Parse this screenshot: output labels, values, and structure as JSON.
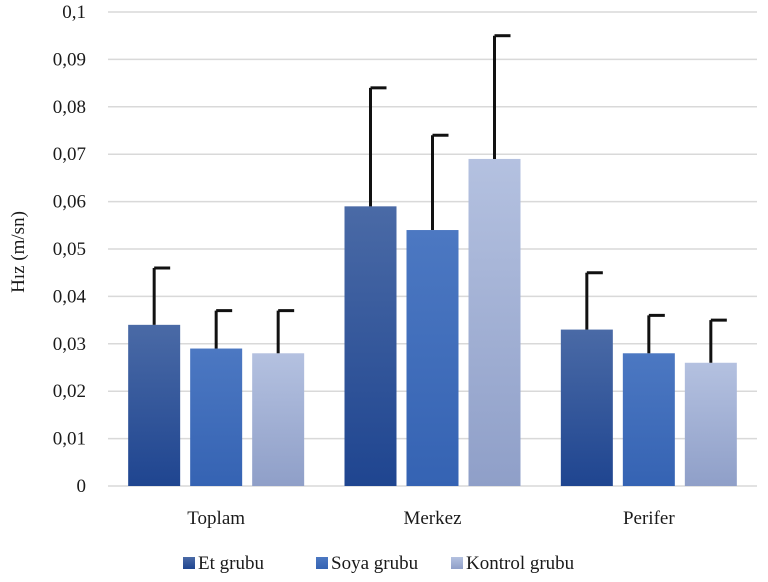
{
  "chart_data": {
    "type": "bar",
    "title": "",
    "xlabel": "",
    "ylabel": "Hız (m/sn)",
    "ylim": [
      0,
      0.1
    ],
    "yticks": [
      "0",
      "0,01",
      "0,02",
      "0,03",
      "0,04",
      "0,05",
      "0,06",
      "0,07",
      "0,08",
      "0,09",
      "0,1"
    ],
    "categories": [
      "Toplam",
      "Merkez",
      "Perifer"
    ],
    "series": [
      {
        "name": "Et grubu",
        "values": [
          0.034,
          0.059,
          0.033
        ],
        "error_upper": [
          0.046,
          0.084,
          0.045
        ],
        "color_top": "#4a6aa6",
        "color_bottom": "#1f4590"
      },
      {
        "name": "Soya grubu",
        "values": [
          0.029,
          0.054,
          0.028
        ],
        "error_upper": [
          0.037,
          0.074,
          0.036
        ],
        "color_top": "#4c78c2",
        "color_bottom": "#3563b3"
      },
      {
        "name": "Kontrol grubu",
        "values": [
          0.028,
          0.069,
          0.026
        ],
        "error_upper": [
          0.037,
          0.095,
          0.035
        ],
        "color_top": "#b4c1e0",
        "color_bottom": "#8f9fc8"
      }
    ],
    "grid": true,
    "legend_position": "bottom"
  }
}
